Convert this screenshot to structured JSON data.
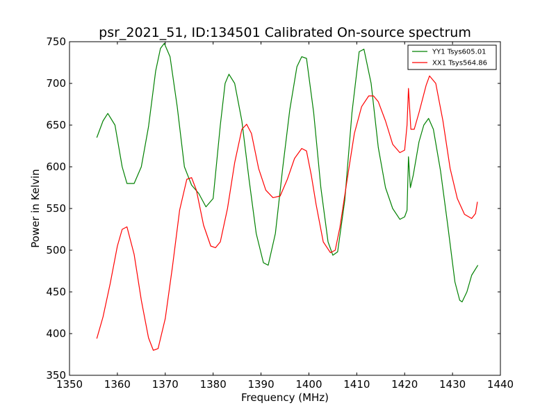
{
  "chart_data": {
    "type": "line",
    "title": "psr_2021_51, ID:134501 Calibrated On-source spectrum",
    "xlabel": "Frequency (MHz)",
    "ylabel": "Power in Kelvin",
    "xlim": [
      1350,
      1440
    ],
    "ylim": [
      350,
      750
    ],
    "xticks": [
      "1350",
      "1360",
      "1370",
      "1380",
      "1390",
      "1400",
      "1410",
      "1420",
      "1430",
      "1440"
    ],
    "yticks": [
      "350",
      "400",
      "450",
      "500",
      "550",
      "600",
      "650",
      "700",
      "750"
    ],
    "legend_placement": "top-right",
    "grid": false,
    "series": [
      {
        "name": "YY1 Tsys605.01",
        "color": "#008000",
        "x": [
          1355.7,
          1357.0,
          1358.0,
          1359.5,
          1361.0,
          1362.0,
          1363.5,
          1365.0,
          1366.5,
          1368.0,
          1369.0,
          1369.8,
          1371.0,
          1372.5,
          1374.0,
          1375.5,
          1377.0,
          1378.5,
          1380.0,
          1381.5,
          1382.5,
          1383.3,
          1384.5,
          1386.0,
          1387.5,
          1389.0,
          1390.5,
          1391.5,
          1393.0,
          1394.5,
          1396.0,
          1397.5,
          1398.5,
          1399.5,
          1401.0,
          1402.5,
          1404.0,
          1405.0,
          1406.0,
          1407.5,
          1409.0,
          1410.5,
          1411.5,
          1413.0,
          1414.5,
          1416.0,
          1417.5,
          1419.0,
          1420.0,
          1420.5,
          1420.8,
          1421.2,
          1421.8,
          1423.0,
          1424.0,
          1425.0,
          1426.0,
          1427.5,
          1429.0,
          1430.5,
          1431.5,
          1432.0,
          1433.0,
          1434.0,
          1435.3
        ],
        "values": [
          635,
          655,
          664,
          650,
          600,
          580,
          580,
          600,
          648,
          715,
          742,
          748,
          732,
          672,
          600,
          578,
          568,
          552,
          562,
          650,
          700,
          711,
          700,
          655,
          585,
          520,
          485,
          482,
          520,
          597,
          668,
          720,
          732,
          730,
          665,
          575,
          510,
          494,
          498,
          560,
          665,
          738,
          741,
          700,
          623,
          575,
          550,
          537,
          540,
          548,
          612,
          575,
          590,
          630,
          650,
          658,
          645,
          595,
          530,
          462,
          440,
          438,
          450,
          470,
          482
        ]
      },
      {
        "name": "XX1 Tsys564.86",
        "color": "#ff0000",
        "x": [
          1355.7,
          1357.0,
          1358.5,
          1360.0,
          1361.0,
          1362.0,
          1363.5,
          1365.0,
          1366.5,
          1367.5,
          1368.5,
          1370.0,
          1371.5,
          1373.0,
          1374.5,
          1375.5,
          1376.5,
          1378.0,
          1379.5,
          1380.5,
          1381.5,
          1383.0,
          1384.5,
          1386.0,
          1387.0,
          1388.0,
          1389.5,
          1391.0,
          1392.5,
          1394.0,
          1395.5,
          1397.0,
          1398.5,
          1399.5,
          1400.5,
          1401.5,
          1403.0,
          1404.5,
          1405.5,
          1406.5,
          1408.0,
          1409.5,
          1411.0,
          1412.5,
          1413.5,
          1414.5,
          1416.0,
          1417.5,
          1419.0,
          1420.0,
          1420.5,
          1420.8,
          1421.3,
          1422.0,
          1423.0,
          1424.5,
          1425.2,
          1426.5,
          1428.0,
          1429.5,
          1431.0,
          1432.5,
          1434.0,
          1434.8,
          1435.2
        ],
        "values": [
          394,
          420,
          460,
          505,
          525,
          528,
          495,
          440,
          395,
          380,
          382,
          418,
          480,
          548,
          585,
          587,
          572,
          530,
          505,
          503,
          510,
          550,
          605,
          645,
          651,
          640,
          598,
          572,
          563,
          565,
          585,
          610,
          622,
          619,
          590,
          555,
          510,
          497,
          500,
          528,
          585,
          640,
          672,
          685,
          685,
          678,
          655,
          627,
          617,
          620,
          650,
          694,
          645,
          645,
          665,
          698,
          709,
          700,
          655,
          598,
          562,
          543,
          538,
          544,
          558
        ]
      }
    ]
  }
}
